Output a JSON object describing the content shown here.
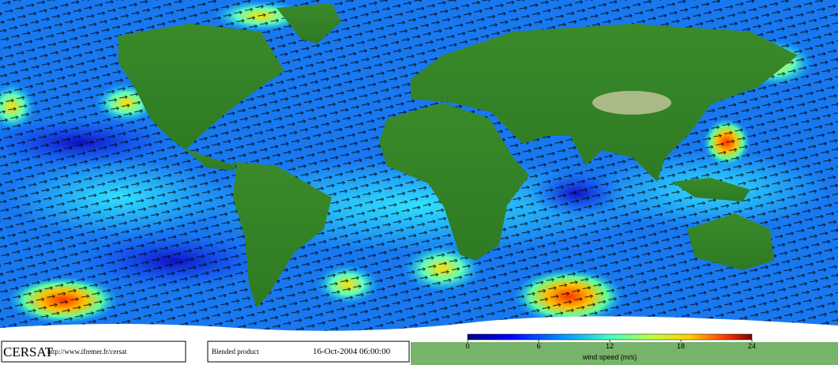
{
  "footer": {
    "logo": "CERSAT",
    "url": "http://www.ifremer.fr/cersat",
    "product": "Blended product",
    "date": "16-Oct-2004 06:00:00"
  },
  "colorbar": {
    "label": "wind speed (m/s)",
    "lim": [
      0,
      24
    ],
    "ticks": [
      0,
      6,
      12,
      18,
      24
    ]
  }
}
